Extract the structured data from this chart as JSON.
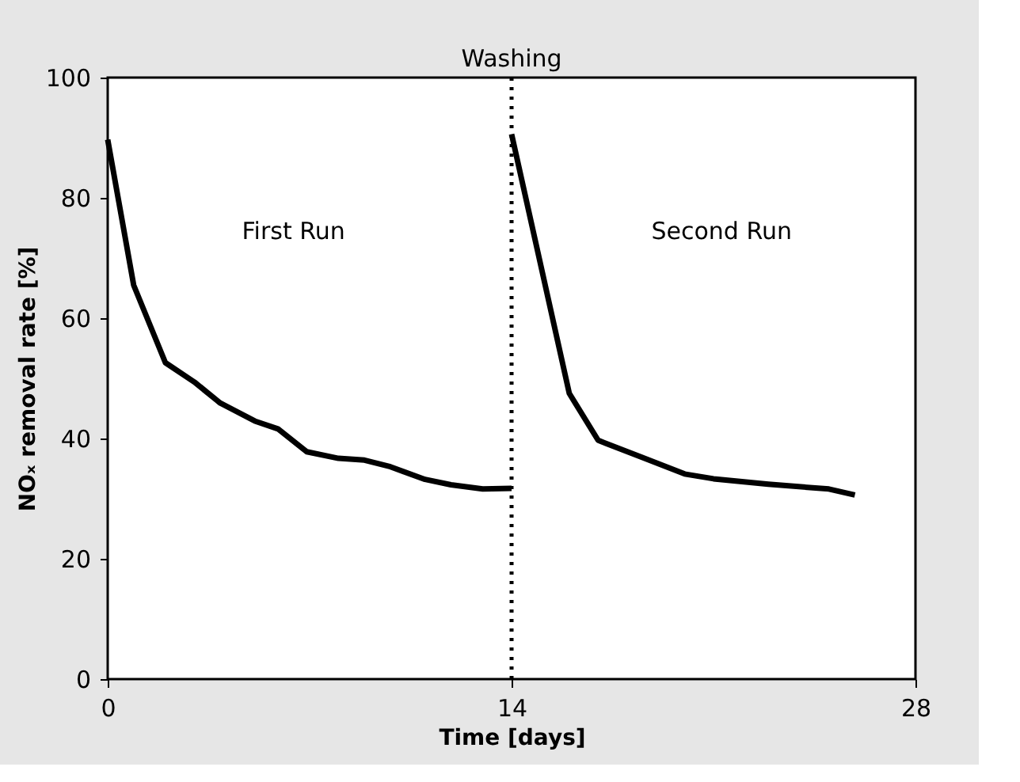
{
  "chart_data": {
    "type": "line",
    "xlabel": "Time [days]",
    "ylabel": "NOₓ removal rate [%]",
    "series": [
      {
        "color": "#000000",
        "x": [
          0,
          0.9,
          2.0,
          3.0,
          3.9,
          5.1,
          5.9,
          6.9,
          8.0,
          8.9,
          9.8,
          11.0,
          11.9,
          13.0,
          14
        ],
        "values": [
          89.7,
          65.5,
          52.6,
          49.4,
          45.9,
          42.9,
          41.6,
          37.8,
          36.7,
          36.4,
          35.3,
          33.2,
          32.3,
          31.6,
          31.7
        ]
      },
      {
        "color": "#000000",
        "x": [
          14,
          16.0,
          17.0,
          18.5,
          20.0,
          21.0,
          22.9,
          25.0,
          25.9
        ],
        "values": [
          90.6,
          47.5,
          39.7,
          36.9,
          34.1,
          33.3,
          32.4,
          31.6,
          30.6
        ]
      }
    ],
    "xlim": [
      0,
      28
    ],
    "xticks": [
      0,
      14,
      28
    ],
    "ylim": [
      0,
      100
    ],
    "yticks": [
      0,
      20,
      40,
      60,
      80,
      100
    ],
    "grid": false,
    "marker": "none",
    "line_style": "solid",
    "ref_lines": [
      {
        "axis": "x",
        "value": 14,
        "label": "Washing",
        "line_style": "dotted",
        "color": "#000000"
      }
    ],
    "annotations": [
      "First Run",
      "Second Run"
    ]
  }
}
